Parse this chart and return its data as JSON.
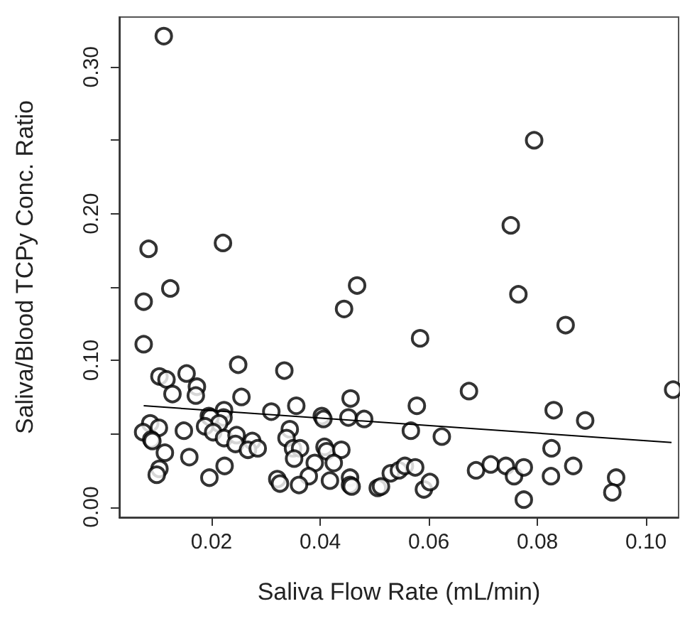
{
  "chart_data": {
    "type": "scatter",
    "xlabel": "Saliva Flow Rate (mL/min)",
    "ylabel": "Saliva/Blood TCPy Conc. Ratio",
    "xlim": [
      0.003,
      0.106
    ],
    "xticks": [
      0.02,
      0.04,
      0.06,
      0.08,
      {
        "value": 0.1,
        "label": "0.10"
      }
    ],
    "ylim": [
      -0.007,
      0.334
    ],
    "yticks": [
      {
        "value": 0,
        "label": "0.00"
      },
      {
        "value": 0.05,
        "label": null
      },
      {
        "value": 0.1,
        "label": "0.10"
      },
      {
        "value": 0.15,
        "label": null
      },
      {
        "value": 0.2,
        "label": "0.20"
      },
      {
        "value": 0.25,
        "label": null
      },
      {
        "value": 0.3,
        "label": "0.30"
      }
    ],
    "marker": "circle",
    "series": [
      {
        "color": "#000000",
        "x": [
          0.0112,
          0.0084,
          0.0221,
          0.0794,
          0.0751,
          0.0075,
          0.0124,
          0.0444,
          0.0468,
          0.0075,
          0.0104,
          0.0117,
          0.0154,
          0.0128,
          0.0173,
          0.0171,
          0.0249,
          0.0255,
          0.0334,
          0.0356,
          0.031,
          0.0456,
          0.0403,
          0.0406,
          0.0452,
          0.0481,
          0.0223,
          0.0195,
          0.0222,
          0.0198,
          0.0214,
          0.0188,
          0.0203,
          0.0223,
          0.0246,
          0.0244,
          0.0275,
          0.0267,
          0.0285,
          0.0087,
          0.0074,
          0.0103,
          0.0089,
          0.0091,
          0.0149,
          0.0114,
          0.0159,
          0.0104,
          0.0099,
          0.0196,
          0.0224,
          0.0344,
          0.0338,
          0.035,
          0.0363,
          0.0352,
          0.0408,
          0.0412,
          0.0439,
          0.039,
          0.0425,
          0.0321,
          0.0326,
          0.0379,
          0.0361,
          0.0418,
          0.0455,
          0.0455,
          0.0458,
          0.0506,
          0.0512,
          0.0765,
          0.0852,
          0.0584,
          0.0674,
          0.105,
          0.0578,
          0.083,
          0.0888,
          0.0567,
          0.0624,
          0.0826,
          0.053,
          0.0545,
          0.0556,
          0.0575,
          0.0591,
          0.0602,
          0.0687,
          0.0714,
          0.0742,
          0.0757,
          0.0775,
          0.0775,
          0.0825,
          0.0866,
          0.0945,
          0.0938
        ],
        "values": [
          0.321,
          0.176,
          0.18,
          0.25,
          0.192,
          0.14,
          0.149,
          0.135,
          0.151,
          0.111,
          0.089,
          0.087,
          0.091,
          0.077,
          0.082,
          0.076,
          0.097,
          0.075,
          0.093,
          0.069,
          0.065,
          0.074,
          0.062,
          0.06,
          0.061,
          0.06,
          0.066,
          0.062,
          0.061,
          0.061,
          0.057,
          0.055,
          0.051,
          0.047,
          0.049,
          0.043,
          0.045,
          0.039,
          0.04,
          0.057,
          0.051,
          0.054,
          0.046,
          0.045,
          0.052,
          0.037,
          0.034,
          0.026,
          0.022,
          0.02,
          0.028,
          0.053,
          0.047,
          0.04,
          0.04,
          0.033,
          0.041,
          0.038,
          0.039,
          0.03,
          0.03,
          0.019,
          0.016,
          0.021,
          0.015,
          0.018,
          0.02,
          0.015,
          0.014,
          0.013,
          0.014,
          0.145,
          0.124,
          0.115,
          0.079,
          0.08,
          0.069,
          0.066,
          0.059,
          0.052,
          0.048,
          0.04,
          0.023,
          0.025,
          0.028,
          0.027,
          0.012,
          0.017,
          0.025,
          0.029,
          0.028,
          0.021,
          0.027,
          0.005,
          0.021,
          0.028,
          0.02,
          0.01
        ]
      },
      {
        "type": "line",
        "color": "#000000",
        "marker": "none",
        "line_style": "solid",
        "x": [
          0.0075,
          0.1047
        ],
        "values": [
          0.069,
          0.044
        ]
      }
    ]
  }
}
